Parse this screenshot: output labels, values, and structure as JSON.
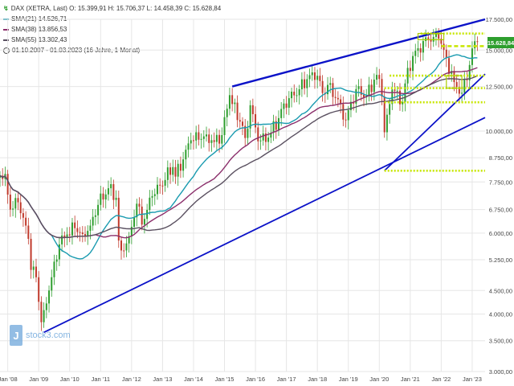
{
  "header": {
    "ticker_line": "DAX (XETRA, Last)  O: 15.399,91  H: 15.706,37  L: 14.458,39  C: 15.628,84",
    "ticker_icon": "ticker-icon",
    "legend": [
      {
        "label": "SMA(21)  14.526,71",
        "color": "#1a9bb0"
      },
      {
        "label": "SMA(38)  13.856,53",
        "color": "#8b2f6b"
      },
      {
        "label": "SMA(55)  13.302,43",
        "color": "#5a5060"
      }
    ],
    "range_text": "01.10.2007 - 01.03.2023  (16 Jahre, 1 Monat)"
  },
  "watermark": {
    "mark": "J",
    "text": "stock3.com"
  },
  "last_price_label": "15.628,84",
  "colors": {
    "up": "#2e9e2e",
    "down": "#c0392b",
    "trend": "#0b12c8",
    "dotted": "#c8e600",
    "grid": "#e6e6e6",
    "axis_text": "#444444"
  },
  "chart_data": {
    "type": "candlestick",
    "scale": "log",
    "ylim": [
      3000,
      17500
    ],
    "y_ticks": [
      {
        "v": 3000,
        "label": "3.000,00"
      },
      {
        "v": 3500,
        "label": "3.500,00"
      },
      {
        "v": 4000,
        "label": "4.000,00"
      },
      {
        "v": 4500,
        "label": "4.500,00"
      },
      {
        "v": 5250,
        "label": "5.250,00"
      },
      {
        "v": 6000,
        "label": "6.000,00"
      },
      {
        "v": 6750,
        "label": "6.750,00"
      },
      {
        "v": 7750,
        "label": "7.750,00"
      },
      {
        "v": 8750,
        "label": "8.750,00"
      },
      {
        "v": 10000,
        "label": "10.000,00"
      },
      {
        "v": 12500,
        "label": "12.500,00"
      },
      {
        "v": 15000,
        "label": "15.000,00"
      },
      {
        "v": 17500,
        "label": "17.500,00"
      }
    ],
    "x_ticks": [
      "Jan '08",
      "Jan '09",
      "Jan '10",
      "Jan '11",
      "Jan '12",
      "Jan '13",
      "Jan '14",
      "Jan '15",
      "Jan '16",
      "Jan '17",
      "Jan '18",
      "Jan '19",
      "Jan '20",
      "Jan '21",
      "Jan '22",
      "Jan '23"
    ],
    "x_range": [
      "2007-10",
      "2023-06"
    ],
    "close_anchors": [
      [
        "2007-10",
        8000
      ],
      [
        "2007-12",
        8070
      ],
      [
        "2008-02",
        6750
      ],
      [
        "2008-05",
        7000
      ],
      [
        "2008-07",
        6480
      ],
      [
        "2008-09",
        5830
      ],
      [
        "2008-10",
        4990
      ],
      [
        "2008-12",
        4810
      ],
      [
        "2009-02",
        3840
      ],
      [
        "2009-03",
        4080
      ],
      [
        "2009-06",
        4810
      ],
      [
        "2009-09",
        5670
      ],
      [
        "2009-12",
        5960
      ],
      [
        "2010-03",
        6150
      ],
      [
        "2010-06",
        5970
      ],
      [
        "2010-09",
        6230
      ],
      [
        "2010-12",
        6910
      ],
      [
        "2011-04",
        7510
      ],
      [
        "2011-07",
        7160
      ],
      [
        "2011-08",
        5780
      ],
      [
        "2011-09",
        5500
      ],
      [
        "2011-12",
        5900
      ],
      [
        "2012-03",
        6950
      ],
      [
        "2012-05",
        6260
      ],
      [
        "2012-09",
        7220
      ],
      [
        "2012-12",
        7610
      ],
      [
        "2013-05",
        8350
      ],
      [
        "2013-06",
        7960
      ],
      [
        "2013-12",
        9550
      ],
      [
        "2014-06",
        9830
      ],
      [
        "2014-09",
        9470
      ],
      [
        "2014-12",
        9800
      ],
      [
        "2015-03",
        11970
      ],
      [
        "2015-04",
        11450
      ],
      [
        "2015-08",
        10260
      ],
      [
        "2015-09",
        9660
      ],
      [
        "2015-11",
        11380
      ],
      [
        "2016-02",
        9500
      ],
      [
        "2016-06",
        9680
      ],
      [
        "2016-10",
        10670
      ],
      [
        "2016-12",
        11480
      ],
      [
        "2017-06",
        12330
      ],
      [
        "2017-10",
        13230
      ],
      [
        "2017-12",
        12920
      ],
      [
        "2018-01",
        13190
      ],
      [
        "2018-03",
        12100
      ],
      [
        "2018-05",
        12600
      ],
      [
        "2018-10",
        11450
      ],
      [
        "2018-12",
        10560
      ],
      [
        "2019-04",
        12340
      ],
      [
        "2019-08",
        11940
      ],
      [
        "2019-12",
        13250
      ],
      [
        "2020-01",
        12980
      ],
      [
        "2020-02",
        11890
      ],
      [
        "2020-03",
        9940
      ],
      [
        "2020-06",
        12310
      ],
      [
        "2020-10",
        11560
      ],
      [
        "2020-12",
        13720
      ],
      [
        "2021-04",
        15140
      ],
      [
        "2021-08",
        15840
      ],
      [
        "2021-12",
        15880
      ],
      [
        "2022-03",
        14410
      ],
      [
        "2022-06",
        12780
      ],
      [
        "2022-09",
        12110
      ],
      [
        "2022-12",
        13920
      ],
      [
        "2023-01",
        15130
      ],
      [
        "2023-03",
        15628.84
      ]
    ],
    "trendlines": [
      {
        "name": "lower-long",
        "from": [
          "2009-03",
          3650
        ],
        "to": [
          "2023-06",
          10700
        ]
      },
      {
        "name": "upper",
        "from": [
          "2015-04",
          12500
        ],
        "to": [
          "2023-06",
          17500
        ]
      },
      {
        "name": "mid-support",
        "from": [
          "2020-03",
          8200
        ],
        "to": [
          "2023-06",
          13300
        ]
      }
    ],
    "horizontal_levels": [
      {
        "y": 16300,
        "from": "2021-05",
        "to": "2023-06",
        "style": "dotted"
      },
      {
        "y": 15300,
        "from": "2022-01",
        "to": "2023-06",
        "style": "dashed"
      },
      {
        "y": 13200,
        "from": "2020-05",
        "to": "2023-06",
        "style": "dotted"
      },
      {
        "y": 12400,
        "from": "2020-03",
        "to": "2023-06",
        "style": "dotted"
      },
      {
        "y": 11550,
        "from": "2020-03",
        "to": "2023-06",
        "style": "dotted"
      },
      {
        "y": 8200,
        "from": "2020-03",
        "to": "2023-06",
        "style": "dotted"
      }
    ],
    "intervals": [
      {
        "from": "2021-04",
        "to": "2022-02",
        "high": 16300,
        "low": 15800,
        "color": "#aacc00"
      },
      {
        "from": "2022-03",
        "to": "2022-09",
        "high": 13200,
        "low": 12400,
        "color": "#aacc00"
      }
    ]
  }
}
